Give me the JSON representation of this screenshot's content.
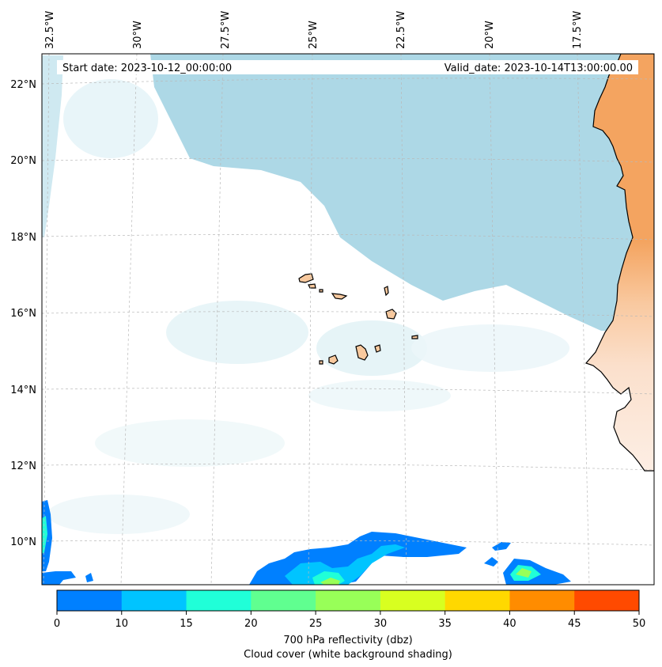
{
  "header": {
    "start_date": "Start date: 2023-10-12_00:00:00",
    "valid_date": "Valid_date: 2023-10-14T13:00:00.00"
  },
  "lon_labels": [
    "32.5°W",
    "30°W",
    "27.5°W",
    "25°W",
    "22.5°W",
    "20°W",
    "17.5°W"
  ],
  "lat_labels": [
    "22°N",
    "20°N",
    "18°N",
    "16°N",
    "14°N",
    "12°N",
    "10°N"
  ],
  "colorbar": {
    "ticks": [
      "0",
      "10",
      "15",
      "20",
      "25",
      "30",
      "35",
      "40",
      "45",
      "50"
    ],
    "colors": [
      "#0080ff",
      "#00c4ff",
      "#20ffd8",
      "#60ff90",
      "#98ff58",
      "#d8ff20",
      "#ffd800",
      "#ff8c00",
      "#ff4a00"
    ],
    "label_line1": "700 hPa reflectivity (dbz)",
    "label_line2": "Cloud cover (white background shading)"
  },
  "colors": {
    "ocean_clear": "#add8e6",
    "land": "#f4a460",
    "islands": "#f8c99e"
  }
}
